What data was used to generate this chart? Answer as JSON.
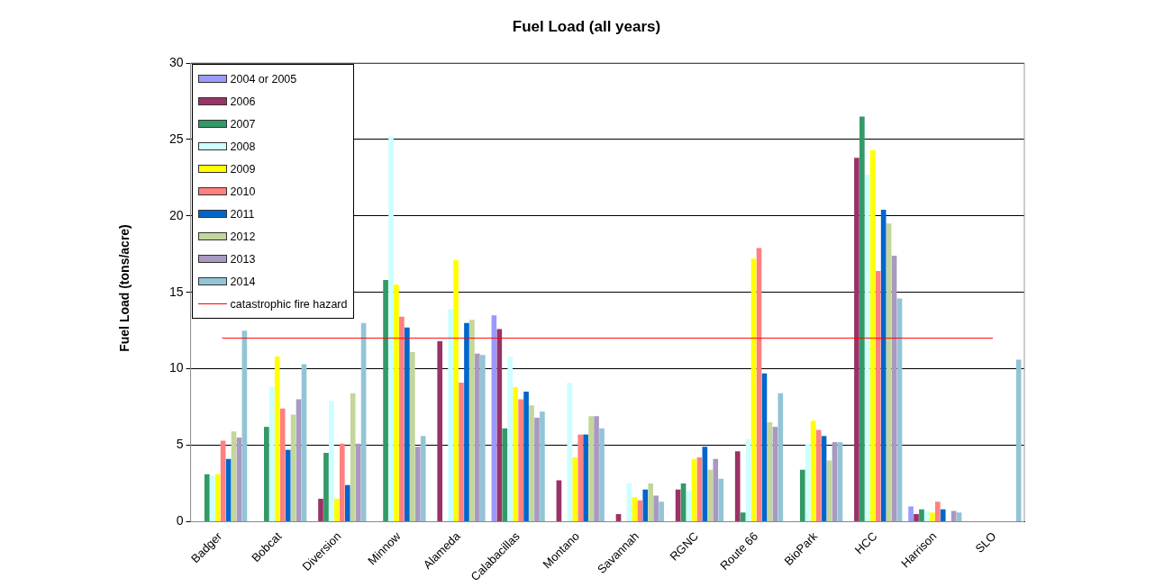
{
  "chart_data": {
    "type": "bar",
    "title": "Fuel Load (all years)",
    "ylabel": "Fuel Load (tons/acre)",
    "categories": [
      "Badger",
      "Bobcat",
      "Diversion",
      "Minnow",
      "Alameda",
      "Calabacillas",
      "Montano",
      "Savannah",
      "RGNC",
      "Route 66",
      "BioPark",
      "HCC",
      "Harrison",
      "SLO"
    ],
    "series": [
      {
        "name": "2004 or 2005",
        "color": "#9999ff",
        "values": [
          null,
          null,
          null,
          null,
          null,
          13.5,
          null,
          null,
          null,
          0,
          null,
          null,
          1.0,
          null
        ]
      },
      {
        "name": "2006",
        "color": "#993366",
        "values": [
          null,
          null,
          1.5,
          null,
          11.8,
          12.6,
          2.7,
          0.5,
          2.1,
          4.6,
          null,
          23.8,
          0.5,
          null
        ]
      },
      {
        "name": "2007",
        "color": "#339966",
        "values": [
          3.1,
          6.2,
          4.5,
          15.8,
          null,
          6.1,
          null,
          null,
          2.5,
          0.6,
          3.4,
          26.5,
          0.8,
          null
        ]
      },
      {
        "name": "2008",
        "color": "#ccffff",
        "values": [
          3.0,
          8.8,
          7.9,
          25.2,
          13.9,
          10.8,
          9.1,
          2.5,
          2.0,
          5.4,
          5.1,
          22.7,
          0.7,
          null
        ]
      },
      {
        "name": "2009",
        "color": "#ffff00",
        "values": [
          3.1,
          10.8,
          1.5,
          15.5,
          17.1,
          8.8,
          4.2,
          1.6,
          4.1,
          17.2,
          6.6,
          24.3,
          0.6,
          null
        ]
      },
      {
        "name": "2010",
        "color": "#ff8080",
        "values": [
          5.3,
          7.4,
          5.1,
          13.4,
          9.1,
          8.0,
          5.7,
          1.4,
          4.2,
          17.9,
          6.0,
          16.4,
          1.3,
          null
        ]
      },
      {
        "name": "2011",
        "color": "#0066cc",
        "values": [
          4.1,
          4.7,
          2.4,
          12.7,
          13.0,
          8.5,
          5.7,
          2.1,
          4.9,
          9.7,
          5.6,
          20.4,
          0.8,
          null
        ]
      },
      {
        "name": "2012",
        "color": "#c3d69b",
        "values": [
          5.9,
          7.0,
          8.4,
          11.1,
          13.2,
          7.6,
          6.9,
          2.5,
          3.4,
          6.5,
          4.0,
          19.5,
          null,
          null
        ]
      },
      {
        "name": "2013",
        "color": "#a899c0",
        "values": [
          5.5,
          8.0,
          5.1,
          4.9,
          11.0,
          6.8,
          6.9,
          1.7,
          4.1,
          6.2,
          5.2,
          17.4,
          0.7,
          null
        ]
      },
      {
        "name": "2014",
        "color": "#93c4d6",
        "values": [
          12.5,
          10.3,
          13.0,
          5.6,
          10.9,
          7.2,
          6.1,
          1.3,
          2.8,
          8.4,
          5.2,
          14.6,
          0.6,
          10.6
        ]
      }
    ],
    "ylim": [
      0,
      30
    ],
    "yticks": [
      0,
      5,
      10,
      15,
      20,
      25,
      30
    ],
    "grid": "y",
    "legend": "top left",
    "ref_lines": [
      {
        "axis": "y",
        "value": 12,
        "label": "catastrophic fire hazard",
        "color": "#ff0000"
      }
    ]
  }
}
